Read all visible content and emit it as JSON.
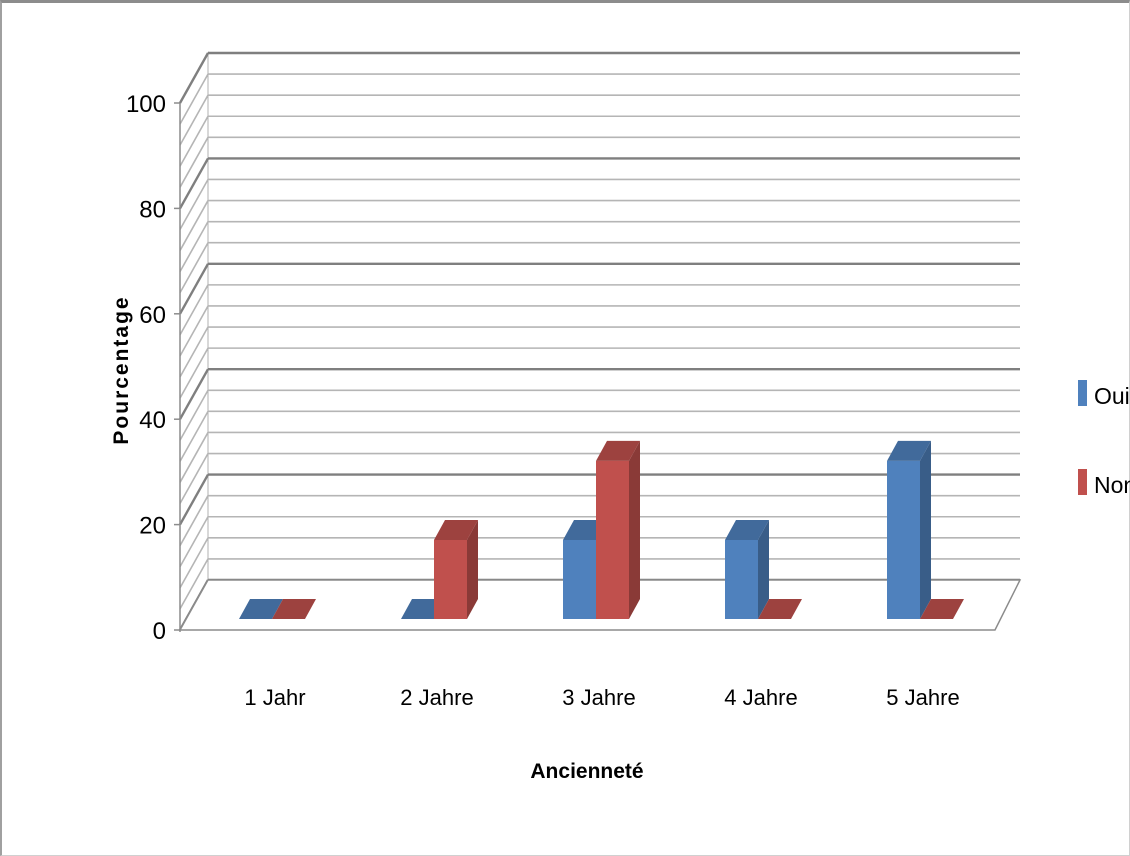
{
  "chart_data": {
    "type": "bar",
    "style": "3d-clustered-column",
    "categories": [
      "1 Jahr",
      "2 Jahre",
      "3 Jahre",
      "4 Jahre",
      "5 Jahre"
    ],
    "series": [
      {
        "name": "Oui",
        "values": [
          0,
          0,
          15,
          15,
          30
        ],
        "color": "#4f81bd"
      },
      {
        "name": "Non",
        "values": [
          0,
          15,
          30,
          0,
          0
        ],
        "color": "#c0504d"
      }
    ],
    "title": "",
    "xlabel": "Ancienneté",
    "ylabel": "Pourcentage",
    "ylim": [
      0,
      100
    ],
    "yticks": [
      0,
      20,
      40,
      60,
      80,
      100
    ],
    "grid": true,
    "legend_position": "right"
  }
}
